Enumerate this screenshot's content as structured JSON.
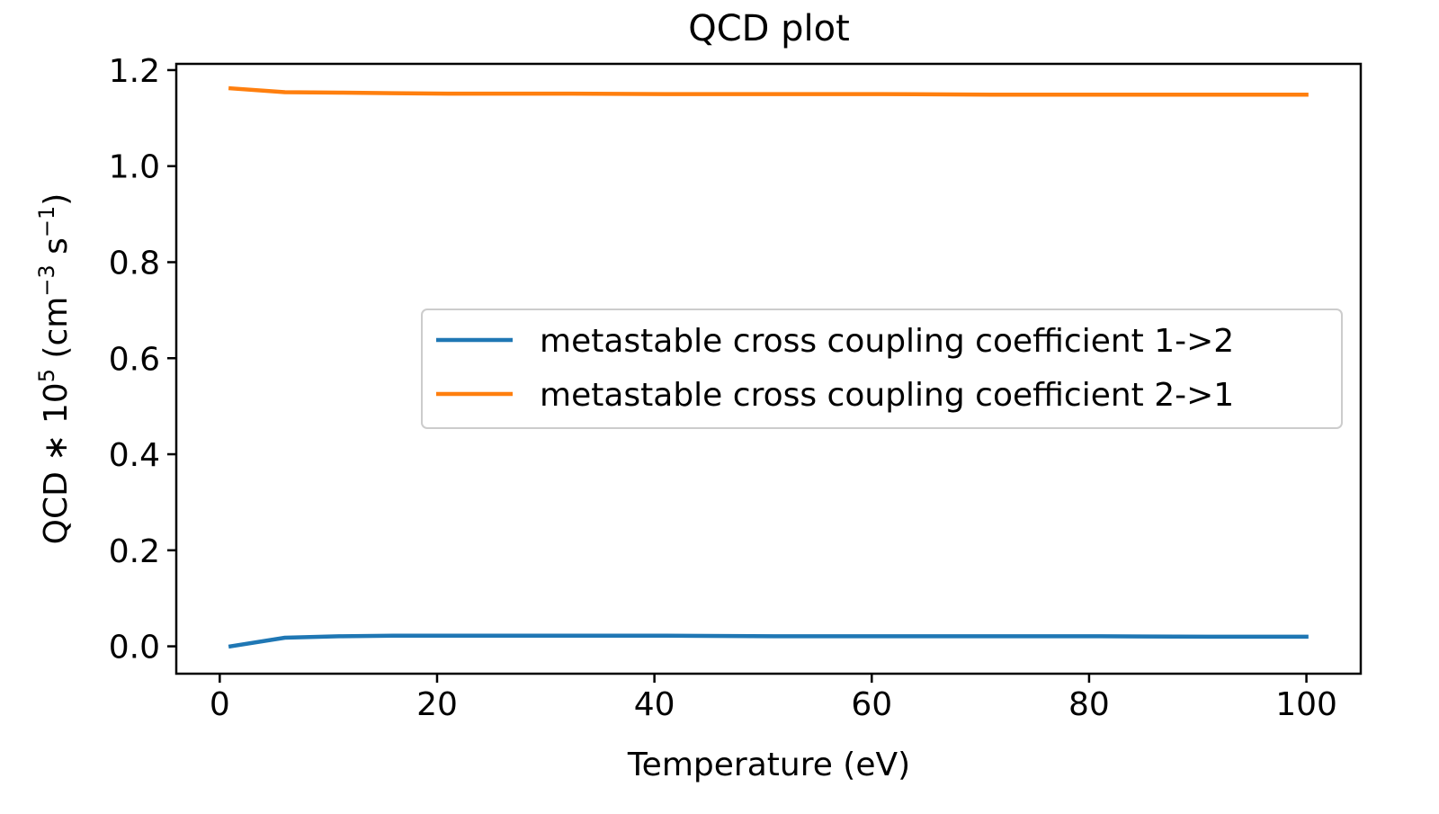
{
  "chart_data": {
    "type": "line",
    "title": "QCD plot",
    "xlabel": "Temperature (eV)",
    "ylabel": {
      "prefix": "QCD ∗ 10",
      "exp": "5",
      "unit_open": " (cm",
      "unit_exp1": "−3",
      "unit_mid": " s",
      "unit_exp2": "−1",
      "unit_close": ")"
    },
    "xlim": [
      -4,
      105
    ],
    "ylim": [
      -0.057,
      1.213
    ],
    "xticks": [
      0,
      20,
      40,
      60,
      80,
      100
    ],
    "xtick_labels": [
      "0",
      "20",
      "40",
      "60",
      "80",
      "100"
    ],
    "yticks": [
      0.0,
      0.2,
      0.4,
      0.6,
      0.8,
      1.0,
      1.2
    ],
    "ytick_labels": [
      "0.0",
      "0.2",
      "0.4",
      "0.6",
      "0.8",
      "1.0",
      "1.2"
    ],
    "grid": false,
    "legend_position": "center-right",
    "series": [
      {
        "name": "metastable cross coupling coefficient 1->2",
        "color": "#1f77b4",
        "x": [
          1,
          6,
          11,
          16,
          21,
          31,
          41,
          51,
          61,
          71,
          81,
          91,
          100
        ],
        "y": [
          0.0,
          0.018,
          0.021,
          0.022,
          0.022,
          0.022,
          0.022,
          0.021,
          0.021,
          0.021,
          0.021,
          0.02,
          0.02
        ]
      },
      {
        "name": "metastable cross coupling coefficient 2->1",
        "color": "#ff7f0e",
        "x": [
          1,
          6,
          11,
          16,
          21,
          31,
          41,
          51,
          61,
          71,
          81,
          91,
          100
        ],
        "y": [
          1.162,
          1.154,
          1.153,
          1.152,
          1.151,
          1.151,
          1.15,
          1.15,
          1.15,
          1.149,
          1.149,
          1.149,
          1.149
        ]
      }
    ]
  }
}
